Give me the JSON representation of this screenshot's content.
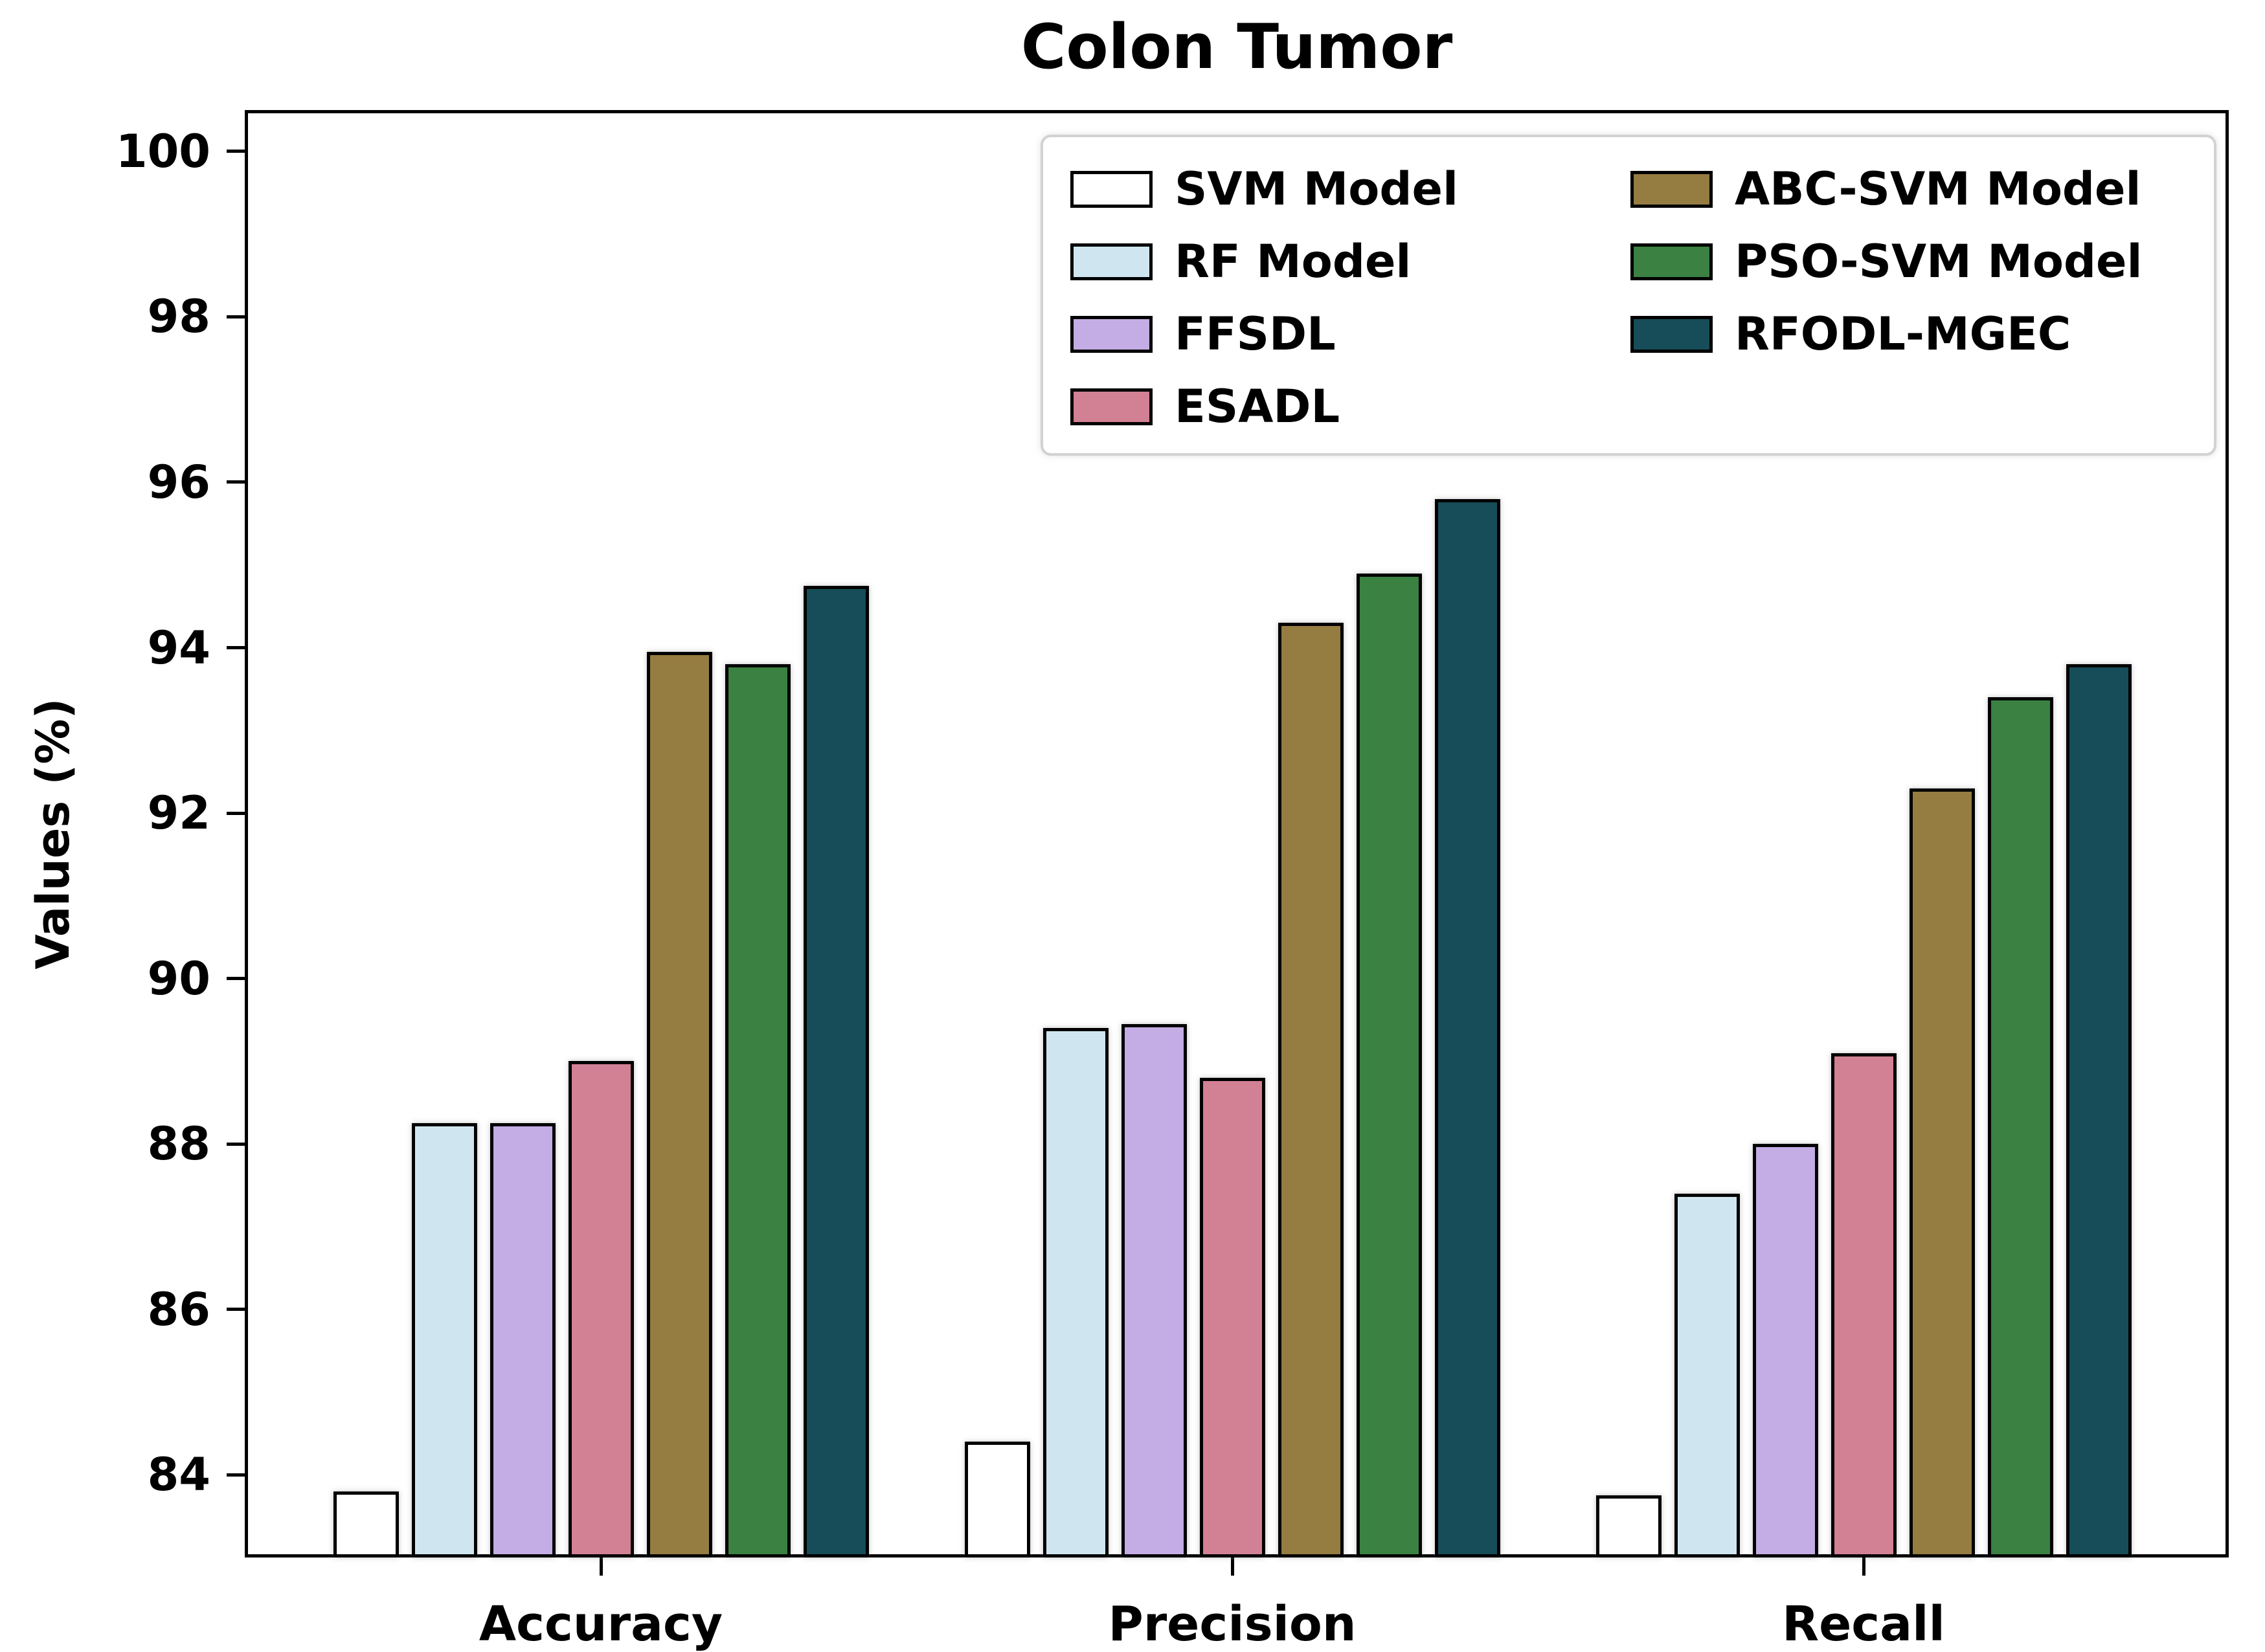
{
  "title": "Colon Tumor",
  "chart_data": {
    "type": "bar",
    "title": "Colon Tumor",
    "xlabel": "",
    "ylabel": "Values (%)",
    "categories": [
      "Accuracy",
      "Precision",
      "Recall"
    ],
    "series": [
      {
        "name": "SVM Model",
        "color": "#ffffff",
        "values": [
          83.8,
          84.4,
          83.75
        ]
      },
      {
        "name": "RF Model",
        "color": "#cfe6f0",
        "values": [
          88.25,
          89.4,
          87.4
        ]
      },
      {
        "name": "FFSDL",
        "color": "#c4ace4",
        "values": [
          88.25,
          89.45,
          88.0
        ]
      },
      {
        "name": "ESADL",
        "color": "#d28093",
        "values": [
          89.0,
          88.8,
          89.1
        ]
      },
      {
        "name": "ABC-SVM Model",
        "color": "#957c40",
        "values": [
          93.95,
          94.3,
          92.3
        ]
      },
      {
        "name": "PSO-SVM Model",
        "color": "#3a8142",
        "values": [
          93.8,
          94.9,
          93.4
        ]
      },
      {
        "name": "RFODL-MGEC",
        "color": "#164d58",
        "values": [
          94.75,
          95.8,
          93.8
        ]
      }
    ],
    "ylim": [
      83,
      100.5
    ],
    "yticks": [
      84,
      86,
      88,
      90,
      92,
      94,
      96,
      98,
      100
    ],
    "grid": false,
    "bar_edge_color": "#000000",
    "legend_position": "upper center-right",
    "legend_columns": 2,
    "legend_column1": [
      "SVM Model",
      "RF Model",
      "FFSDL",
      "ESADL"
    ],
    "legend_column2": [
      "ABC-SVM Model",
      "PSO-SVM Model",
      "RFODL-MGEC"
    ]
  }
}
